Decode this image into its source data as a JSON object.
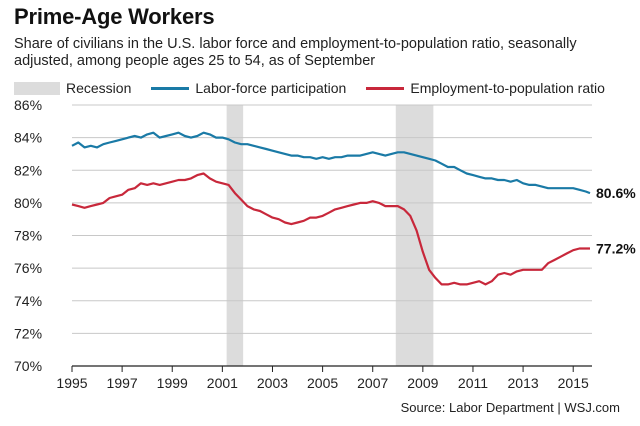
{
  "colors": {
    "recession": "#dcdcdc",
    "labor_force": "#1a7aa6",
    "employment": "#c8283b",
    "grid": "#c8c8c8",
    "axis": "#222222"
  },
  "chart_data": {
    "type": "line",
    "title": "Prime-Age Workers",
    "subtitle": "Share of civilians in the U.S. labor force and employment-to-population ratio, seasonally adjusted, among people ages 25 to 54, as of September",
    "xlabel": "",
    "ylabel": "",
    "xlim": [
      1995,
      2015.75
    ],
    "ylim": [
      70,
      86
    ],
    "x_ticks": [
      1995,
      1997,
      1999,
      2001,
      2003,
      2005,
      2007,
      2009,
      2011,
      2013,
      2015
    ],
    "x_tick_labels": [
      "1995",
      "1997",
      "1999",
      "2001",
      "2003",
      "2005",
      "2007",
      "2009",
      "2011",
      "2013",
      "2015"
    ],
    "y_ticks": [
      70,
      72,
      74,
      76,
      78,
      80,
      82,
      84,
      86
    ],
    "y_tick_labels": [
      "70%",
      "72%",
      "74%",
      "76%",
      "78%",
      "80%",
      "82%",
      "84%",
      "86%"
    ],
    "grid": "horizontal",
    "legend_position": "top",
    "legend": [
      "Recession",
      "Labor-force participation",
      "Employment-to-population ratio"
    ],
    "recessions": [
      {
        "start": 2001.17,
        "end": 2001.83
      },
      {
        "start": 2007.92,
        "end": 2009.42
      }
    ],
    "series": [
      {
        "name": "Labor-force participation",
        "end_label": "80.6%",
        "points": [
          [
            1995.0,
            83.5
          ],
          [
            1995.25,
            83.7
          ],
          [
            1995.5,
            83.4
          ],
          [
            1995.75,
            83.5
          ],
          [
            1996.0,
            83.4
          ],
          [
            1996.25,
            83.6
          ],
          [
            1996.5,
            83.7
          ],
          [
            1996.75,
            83.8
          ],
          [
            1997.0,
            83.9
          ],
          [
            1997.25,
            84.0
          ],
          [
            1997.5,
            84.1
          ],
          [
            1997.75,
            84.0
          ],
          [
            1998.0,
            84.2
          ],
          [
            1998.25,
            84.3
          ],
          [
            1998.5,
            84.0
          ],
          [
            1998.75,
            84.1
          ],
          [
            1999.0,
            84.2
          ],
          [
            1999.25,
            84.3
          ],
          [
            1999.5,
            84.1
          ],
          [
            1999.75,
            84.0
          ],
          [
            2000.0,
            84.1
          ],
          [
            2000.25,
            84.3
          ],
          [
            2000.5,
            84.2
          ],
          [
            2000.75,
            84.0
          ],
          [
            2001.0,
            84.0
          ],
          [
            2001.25,
            83.9
          ],
          [
            2001.5,
            83.7
          ],
          [
            2001.75,
            83.6
          ],
          [
            2002.0,
            83.6
          ],
          [
            2002.25,
            83.5
          ],
          [
            2002.5,
            83.4
          ],
          [
            2002.75,
            83.3
          ],
          [
            2003.0,
            83.2
          ],
          [
            2003.25,
            83.1
          ],
          [
            2003.5,
            83.0
          ],
          [
            2003.75,
            82.9
          ],
          [
            2004.0,
            82.9
          ],
          [
            2004.25,
            82.8
          ],
          [
            2004.5,
            82.8
          ],
          [
            2004.75,
            82.7
          ],
          [
            2005.0,
            82.8
          ],
          [
            2005.25,
            82.7
          ],
          [
            2005.5,
            82.8
          ],
          [
            2005.75,
            82.8
          ],
          [
            2006.0,
            82.9
          ],
          [
            2006.25,
            82.9
          ],
          [
            2006.5,
            82.9
          ],
          [
            2006.75,
            83.0
          ],
          [
            2007.0,
            83.1
          ],
          [
            2007.25,
            83.0
          ],
          [
            2007.5,
            82.9
          ],
          [
            2007.75,
            83.0
          ],
          [
            2008.0,
            83.1
          ],
          [
            2008.25,
            83.1
          ],
          [
            2008.5,
            83.0
          ],
          [
            2008.75,
            82.9
          ],
          [
            2009.0,
            82.8
          ],
          [
            2009.25,
            82.7
          ],
          [
            2009.5,
            82.6
          ],
          [
            2009.75,
            82.4
          ],
          [
            2010.0,
            82.2
          ],
          [
            2010.25,
            82.2
          ],
          [
            2010.5,
            82.0
          ],
          [
            2010.75,
            81.8
          ],
          [
            2011.0,
            81.7
          ],
          [
            2011.25,
            81.6
          ],
          [
            2011.5,
            81.5
          ],
          [
            2011.75,
            81.5
          ],
          [
            2012.0,
            81.4
          ],
          [
            2012.25,
            81.4
          ],
          [
            2012.5,
            81.3
          ],
          [
            2012.75,
            81.4
          ],
          [
            2013.0,
            81.2
          ],
          [
            2013.25,
            81.1
          ],
          [
            2013.5,
            81.1
          ],
          [
            2013.75,
            81.0
          ],
          [
            2014.0,
            80.9
          ],
          [
            2014.25,
            80.9
          ],
          [
            2014.5,
            80.9
          ],
          [
            2014.75,
            80.9
          ],
          [
            2015.0,
            80.9
          ],
          [
            2015.25,
            80.8
          ],
          [
            2015.5,
            80.7
          ],
          [
            2015.67,
            80.6
          ]
        ]
      },
      {
        "name": "Employment-to-population ratio",
        "end_label": "77.2%",
        "points": [
          [
            1995.0,
            79.9
          ],
          [
            1995.25,
            79.8
          ],
          [
            1995.5,
            79.7
          ],
          [
            1995.75,
            79.8
          ],
          [
            1996.0,
            79.9
          ],
          [
            1996.25,
            80.0
          ],
          [
            1996.5,
            80.3
          ],
          [
            1996.75,
            80.4
          ],
          [
            1997.0,
            80.5
          ],
          [
            1997.25,
            80.8
          ],
          [
            1997.5,
            80.9
          ],
          [
            1997.75,
            81.2
          ],
          [
            1998.0,
            81.1
          ],
          [
            1998.25,
            81.2
          ],
          [
            1998.5,
            81.1
          ],
          [
            1998.75,
            81.2
          ],
          [
            1999.0,
            81.3
          ],
          [
            1999.25,
            81.4
          ],
          [
            1999.5,
            81.4
          ],
          [
            1999.75,
            81.5
          ],
          [
            2000.0,
            81.7
          ],
          [
            2000.25,
            81.8
          ],
          [
            2000.5,
            81.5
          ],
          [
            2000.75,
            81.3
          ],
          [
            2001.0,
            81.2
          ],
          [
            2001.25,
            81.1
          ],
          [
            2001.5,
            80.6
          ],
          [
            2001.75,
            80.2
          ],
          [
            2002.0,
            79.8
          ],
          [
            2002.25,
            79.6
          ],
          [
            2002.5,
            79.5
          ],
          [
            2002.75,
            79.3
          ],
          [
            2003.0,
            79.1
          ],
          [
            2003.25,
            79.0
          ],
          [
            2003.5,
            78.8
          ],
          [
            2003.75,
            78.7
          ],
          [
            2004.0,
            78.8
          ],
          [
            2004.25,
            78.9
          ],
          [
            2004.5,
            79.1
          ],
          [
            2004.75,
            79.1
          ],
          [
            2005.0,
            79.2
          ],
          [
            2005.25,
            79.4
          ],
          [
            2005.5,
            79.6
          ],
          [
            2005.75,
            79.7
          ],
          [
            2006.0,
            79.8
          ],
          [
            2006.25,
            79.9
          ],
          [
            2006.5,
            80.0
          ],
          [
            2006.75,
            80.0
          ],
          [
            2007.0,
            80.1
          ],
          [
            2007.25,
            80.0
          ],
          [
            2007.5,
            79.8
          ],
          [
            2007.75,
            79.8
          ],
          [
            2008.0,
            79.8
          ],
          [
            2008.25,
            79.6
          ],
          [
            2008.5,
            79.2
          ],
          [
            2008.75,
            78.3
          ],
          [
            2009.0,
            77.0
          ],
          [
            2009.25,
            75.9
          ],
          [
            2009.5,
            75.4
          ],
          [
            2009.75,
            75.0
          ],
          [
            2010.0,
            75.0
          ],
          [
            2010.25,
            75.1
          ],
          [
            2010.5,
            75.0
          ],
          [
            2010.75,
            75.0
          ],
          [
            2011.0,
            75.1
          ],
          [
            2011.25,
            75.2
          ],
          [
            2011.5,
            75.0
          ],
          [
            2011.75,
            75.2
          ],
          [
            2012.0,
            75.6
          ],
          [
            2012.25,
            75.7
          ],
          [
            2012.5,
            75.6
          ],
          [
            2012.75,
            75.8
          ],
          [
            2013.0,
            75.9
          ],
          [
            2013.25,
            75.9
          ],
          [
            2013.5,
            75.9
          ],
          [
            2013.75,
            75.9
          ],
          [
            2014.0,
            76.3
          ],
          [
            2014.25,
            76.5
          ],
          [
            2014.5,
            76.7
          ],
          [
            2014.75,
            76.9
          ],
          [
            2015.0,
            77.1
          ],
          [
            2015.25,
            77.2
          ],
          [
            2015.5,
            77.2
          ],
          [
            2015.67,
            77.2
          ]
        ]
      }
    ]
  },
  "legend": {
    "recession_label": "Recession",
    "labor_label": "Labor-force participation",
    "employment_label": "Employment-to-population ratio"
  },
  "source": "Source: Labor Department  |  WSJ.com"
}
